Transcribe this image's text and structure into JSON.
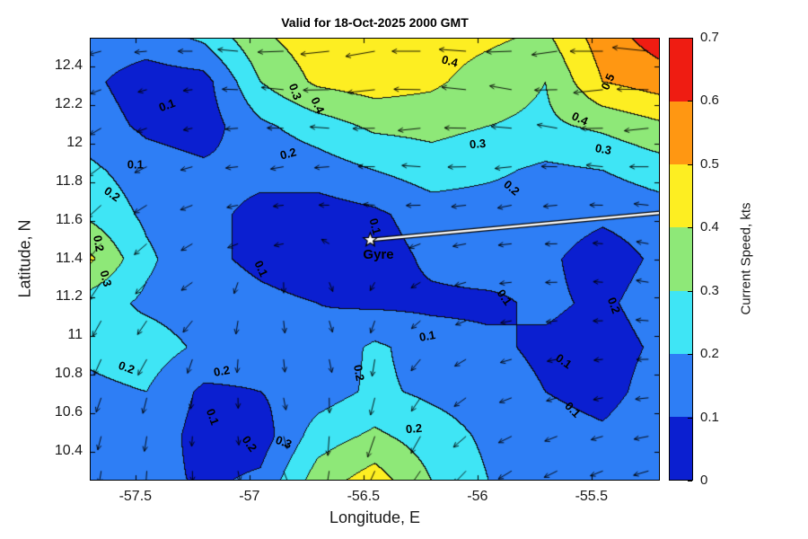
{
  "title": "Valid for 18-Oct-2025 2000 GMT",
  "axes": {
    "xlabel": "Longitude, E",
    "ylabel": "Latitude, N",
    "xlim": [
      -57.7,
      -55.2
    ],
    "ylim": [
      10.25,
      12.55
    ],
    "xticks": [
      -57.5,
      -57,
      -56.5,
      -56,
      -55.5
    ],
    "xtick_labels": [
      "-57.5",
      "-57",
      "-56.5",
      "-56",
      "-55.5"
    ],
    "yticks": [
      10.4,
      10.6,
      10.8,
      11,
      11.2,
      11.4,
      11.6,
      11.8,
      12,
      12.2,
      12.4
    ],
    "ytick_labels": [
      "10.4",
      "10.6",
      "10.8",
      "11",
      "11.2",
      "11.4",
      "11.6",
      "11.8",
      "12",
      "12.2",
      "12.4"
    ]
  },
  "colorbar": {
    "label": "Current Speed, kts",
    "ticks": [
      0,
      0.1,
      0.2,
      0.3,
      0.4,
      0.5,
      0.6,
      0.7
    ],
    "tick_labels": [
      "0",
      "0.1",
      "0.2",
      "0.3",
      "0.4",
      "0.5",
      "0.6",
      "0.7"
    ],
    "colors": [
      "#0b1fd0",
      "#2e7ef5",
      "#3fe5f5",
      "#8ee878",
      "#fdee22",
      "#ff9712",
      "#ef1c12"
    ]
  },
  "chart_data": {
    "type": "heatmap",
    "subtype": "filled-contour-with-quiver",
    "units": "kts",
    "contour_interval": 0.1,
    "zlim": [
      0,
      0.7
    ],
    "grid_lons": [
      -57.7,
      -57.45,
      -57.2,
      -56.95,
      -56.7,
      -56.45,
      -56.2,
      -55.95,
      -55.7,
      -55.45,
      -55.2
    ],
    "grid_lats": [
      12.55,
      12.32,
      12.09,
      11.86,
      11.63,
      11.4,
      11.17,
      10.94,
      10.71,
      10.48,
      10.25
    ],
    "speed_grid": [
      [
        0.15,
        0.15,
        0.22,
        0.38,
        0.46,
        0.48,
        0.45,
        0.42,
        0.38,
        0.55,
        0.65
      ],
      [
        0.12,
        0.05,
        0.06,
        0.3,
        0.42,
        0.45,
        0.42,
        0.35,
        0.3,
        0.5,
        0.55
      ],
      [
        0.15,
        0.08,
        0.05,
        0.18,
        0.25,
        0.32,
        0.33,
        0.3,
        0.28,
        0.32,
        0.38
      ],
      [
        0.22,
        0.15,
        0.12,
        0.12,
        0.15,
        0.2,
        0.25,
        0.22,
        0.18,
        0.2,
        0.25
      ],
      [
        0.28,
        0.18,
        0.12,
        0.08,
        0.05,
        0.08,
        0.15,
        0.15,
        0.15,
        0.12,
        0.15
      ],
      [
        0.42,
        0.22,
        0.12,
        0.08,
        0.05,
        0.05,
        0.12,
        0.15,
        0.12,
        0.05,
        0.12
      ],
      [
        0.25,
        0.18,
        0.15,
        0.12,
        0.1,
        0.08,
        0.08,
        0.08,
        0.12,
        0.08,
        0.15
      ],
      [
        0.22,
        0.25,
        0.18,
        0.15,
        0.12,
        0.22,
        0.15,
        0.12,
        0.08,
        0.05,
        0.12
      ],
      [
        0.18,
        0.2,
        0.08,
        0.1,
        0.15,
        0.22,
        0.18,
        0.15,
        0.1,
        0.06,
        0.15
      ],
      [
        0.15,
        0.18,
        0.05,
        0.05,
        0.25,
        0.32,
        0.25,
        0.18,
        0.15,
        0.12,
        0.18
      ],
      [
        0.12,
        0.15,
        0.08,
        0.12,
        0.35,
        0.45,
        0.3,
        0.2,
        0.18,
        0.15,
        0.2
      ]
    ],
    "quiver": {
      "lons": [
        -57.65,
        -57.45,
        -57.25,
        -57.05,
        -56.85,
        -56.65,
        -56.45,
        -56.25,
        -56.05,
        -55.85,
        -55.65,
        -55.45,
        -55.25
      ],
      "lats": [
        12.48,
        12.28,
        12.08,
        11.88,
        11.68,
        11.48,
        11.28,
        11.08,
        10.88,
        10.68,
        10.48,
        10.3
      ],
      "angles_deg_ccw_from_east": [
        [
          195,
          185,
          180,
          175,
          182,
          186,
          190,
          180,
          176,
          182,
          188,
          180,
          174
        ],
        [
          200,
          195,
          186,
          178,
          174,
          181,
          186,
          179,
          174,
          170,
          181,
          186,
          179
        ],
        [
          210,
          200,
          191,
          184,
          179,
          176,
          181,
          186,
          179,
          175,
          170,
          181,
          186
        ],
        [
          216,
          206,
          196,
          186,
          190,
          184,
          179,
          176,
          181,
          186,
          179,
          174,
          180
        ],
        [
          222,
          212,
          201,
          191,
          186,
          179,
          175,
          181,
          186,
          191,
          185,
          179,
          174
        ],
        [
          230,
          221,
          211,
          201,
          191,
          150,
          120,
          201,
          191,
          186,
          181,
          176,
          170
        ],
        [
          236,
          226,
          216,
          251,
          271,
          291,
          241,
          211,
          196,
          186,
          181,
          176,
          171
        ],
        [
          241,
          236,
          231,
          261,
          276,
          286,
          251,
          221,
          201,
          191,
          186,
          181,
          176
        ],
        [
          246,
          241,
          251,
          266,
          276,
          281,
          261,
          231,
          211,
          196,
          191,
          186,
          181
        ],
        [
          251,
          256,
          261,
          271,
          281,
          271,
          256,
          236,
          216,
          201,
          196,
          191,
          186
        ],
        [
          256,
          261,
          266,
          276,
          286,
          266,
          251,
          241,
          221,
          206,
          201,
          196,
          191
        ],
        [
          261,
          266,
          271,
          281,
          291,
          261,
          246,
          236,
          226,
          211,
          206,
          201,
          196
        ]
      ]
    },
    "contour_labels": [
      {
        "t": "0.1",
        "lon": -57.36,
        "lat": 12.2,
        "rot": -20
      },
      {
        "t": "0.1",
        "lon": -57.5,
        "lat": 11.89,
        "rot": 0
      },
      {
        "t": "0.2",
        "lon": -57.6,
        "lat": 11.74,
        "rot": 35
      },
      {
        "t": "0.2",
        "lon": -57.66,
        "lat": 11.48,
        "rot": 80
      },
      {
        "t": "0.3",
        "lon": -57.63,
        "lat": 11.3,
        "rot": 75
      },
      {
        "t": "0.3",
        "lon": -56.8,
        "lat": 12.27,
        "rot": 70
      },
      {
        "t": "0.4",
        "lon": -56.7,
        "lat": 12.2,
        "rot": 65
      },
      {
        "t": "0.2",
        "lon": -56.83,
        "lat": 11.95,
        "rot": -15
      },
      {
        "t": "0.4",
        "lon": -56.12,
        "lat": 12.43,
        "rot": 15
      },
      {
        "t": "0.3",
        "lon": -56.0,
        "lat": 12.0,
        "rot": -5
      },
      {
        "t": "0.2",
        "lon": -55.85,
        "lat": 11.77,
        "rot": 40
      },
      {
        "t": "0.4",
        "lon": -55.55,
        "lat": 12.13,
        "rot": 25
      },
      {
        "t": "0.3",
        "lon": -55.45,
        "lat": 11.97,
        "rot": 10
      },
      {
        "t": "0.5",
        "lon": -55.43,
        "lat": 12.32,
        "rot": -65
      },
      {
        "t": "0.1",
        "lon": -56.45,
        "lat": 11.57,
        "rot": 75
      },
      {
        "t": "0.1",
        "lon": -56.95,
        "lat": 11.35,
        "rot": 65
      },
      {
        "t": "0.1",
        "lon": -55.88,
        "lat": 11.2,
        "rot": 55
      },
      {
        "t": "0.2",
        "lon": -55.4,
        "lat": 11.16,
        "rot": 70
      },
      {
        "t": "0.1",
        "lon": -56.22,
        "lat": 11.0,
        "rot": -10
      },
      {
        "t": "0.2",
        "lon": -57.54,
        "lat": 10.84,
        "rot": 20
      },
      {
        "t": "0.2",
        "lon": -57.12,
        "lat": 10.82,
        "rot": -10
      },
      {
        "t": "0.2",
        "lon": -56.52,
        "lat": 10.81,
        "rot": 80
      },
      {
        "t": "0.1",
        "lon": -55.62,
        "lat": 10.87,
        "rot": 35
      },
      {
        "t": "0.1",
        "lon": -57.16,
        "lat": 10.58,
        "rot": 70
      },
      {
        "t": "0.2",
        "lon": -57.0,
        "lat": 10.44,
        "rot": 55
      },
      {
        "t": "0.3",
        "lon": -56.85,
        "lat": 10.45,
        "rot": 20
      },
      {
        "t": "0.2",
        "lon": -56.28,
        "lat": 10.52,
        "rot": -5
      },
      {
        "t": "0.1",
        "lon": -55.58,
        "lat": 10.62,
        "rot": 45
      }
    ],
    "marker": {
      "label": "Gyre",
      "lon": -56.47,
      "lat": 11.5,
      "symbol": "star"
    },
    "track_line": {
      "from": {
        "lon": -56.47,
        "lat": 11.5
      },
      "to": {
        "lon": -55.2,
        "lat": 11.64
      }
    }
  }
}
